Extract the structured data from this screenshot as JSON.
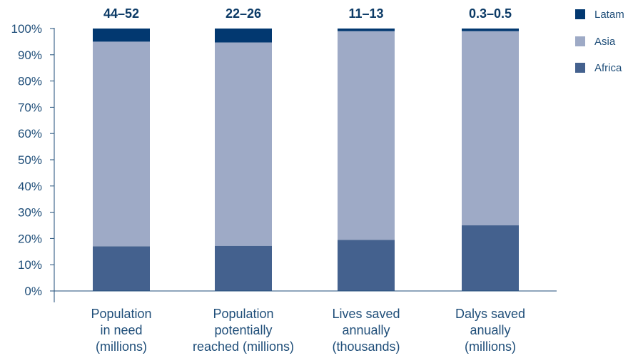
{
  "chart_data": {
    "type": "bar",
    "stacked": true,
    "categories": [
      [
        "Population",
        "in need",
        "(millions)"
      ],
      [
        "Population",
        "potentially",
        "reached (millions)"
      ],
      [
        "Lives saved",
        "annually",
        "(thousands)"
      ],
      [
        "Dalys saved",
        "anually",
        "(millions)"
      ]
    ],
    "top_labels": [
      "44–52",
      "22–26",
      "11–13",
      "0.3–0.5"
    ],
    "series": [
      {
        "name": "Africa",
        "color": "#44618e",
        "values": [
          17,
          17.2,
          19.5,
          25
        ]
      },
      {
        "name": "Asia",
        "color": "#9eaac6",
        "values": [
          78,
          77.5,
          79.5,
          74
        ]
      },
      {
        "name": "Latam",
        "color": "#023870",
        "values": [
          5,
          5.3,
          1,
          1
        ]
      }
    ],
    "legend_order": [
      "Latam",
      "Asia",
      "Africa"
    ],
    "yticks": [
      "0%",
      "10%",
      "20%",
      "30%",
      "40%",
      "50%",
      "60%",
      "70%",
      "80%",
      "90%",
      "100%"
    ],
    "ylim": [
      0,
      100
    ],
    "grid": false,
    "legend_position": "top-right"
  }
}
